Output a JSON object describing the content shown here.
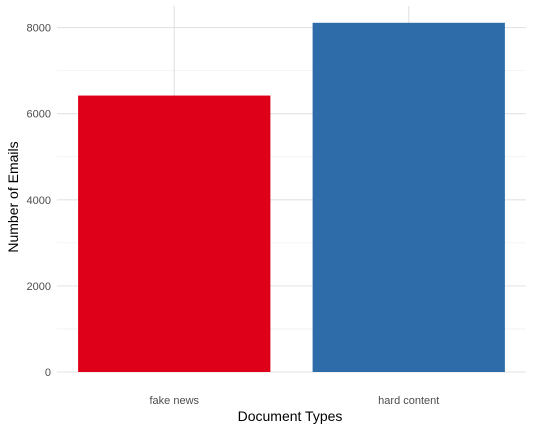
{
  "chart_data": {
    "type": "bar",
    "title": "",
    "xlabel": "Document Types",
    "ylabel": "Number of Emails",
    "categories": [
      "fake news",
      "hard content"
    ],
    "values": [
      6420,
      8110
    ],
    "colors": [
      "#de0018",
      "#2e6ba9"
    ],
    "ylim": [
      0,
      8500
    ],
    "yticks": [
      0,
      2000,
      4000,
      6000,
      8000
    ],
    "grid": true,
    "legend": "none"
  }
}
